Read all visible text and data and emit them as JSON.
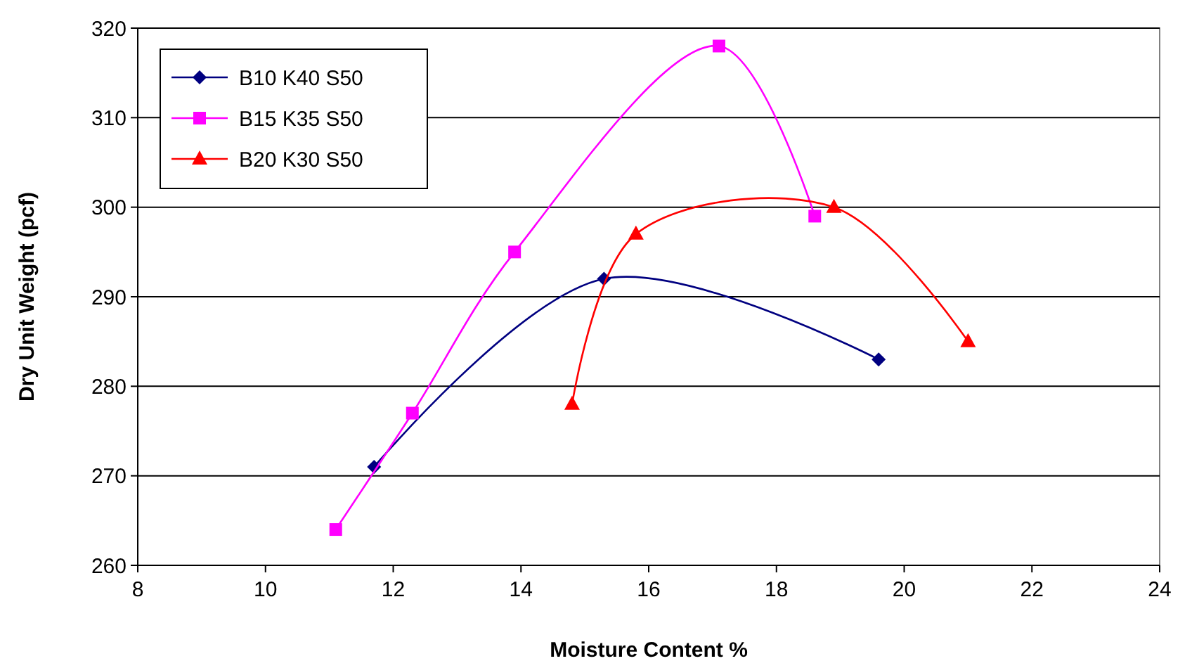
{
  "chart_data": {
    "type": "line",
    "xlabel": "Moisture Content %",
    "ylabel": "Dry Unit Weight (pcf)",
    "xlim": [
      8,
      24
    ],
    "xticks": [
      8,
      10,
      12,
      14,
      16,
      18,
      20,
      22,
      24
    ],
    "ylim": [
      260,
      320
    ],
    "yticks": [
      260,
      270,
      280,
      290,
      300,
      310,
      320
    ],
    "grid": "y",
    "legend": "top left",
    "line_style": "solid",
    "series": [
      {
        "name": "B10 K40 S50",
        "color": "#000080",
        "marker": "diamond",
        "x": [
          11.7,
          15.3,
          19.6
        ],
        "values": [
          271,
          292,
          283
        ]
      },
      {
        "name": "B15 K35 S50",
        "color": "#ff00ff",
        "marker": "square",
        "x": [
          11.1,
          12.3,
          13.9,
          17.1,
          18.6
        ],
        "values": [
          264,
          277,
          295,
          318,
          299
        ]
      },
      {
        "name": "B20 K30 S50",
        "color": "#ff0000",
        "marker": "triangle",
        "x": [
          14.8,
          15.8,
          18.9,
          21
        ],
        "values": [
          278,
          297,
          300,
          285
        ]
      }
    ]
  }
}
